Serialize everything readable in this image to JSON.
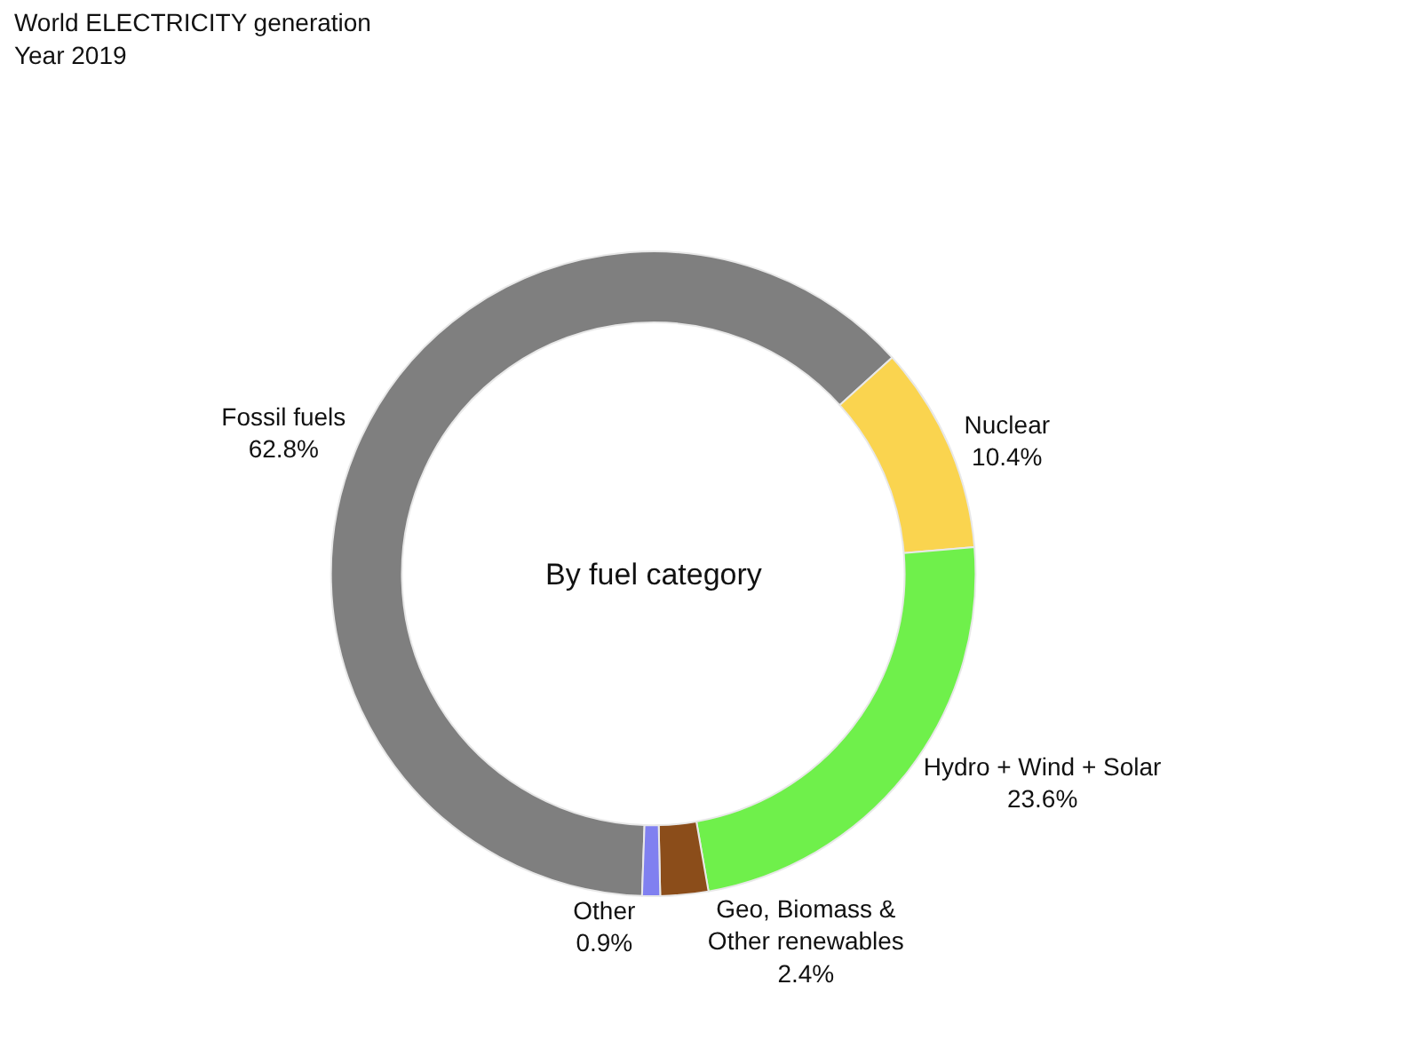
{
  "chart_data": {
    "type": "donut",
    "title": "World ELECTRICITY generation",
    "subtitle": "Year 2019",
    "annotations": [
      "By fuel category"
    ],
    "categories": [
      "Fossil fuels",
      "Nuclear",
      "Hydro + Wind + Solar",
      "Geo, Biomass &\nOther renewables",
      "Other"
    ],
    "values": [
      62.8,
      10.4,
      23.6,
      2.4,
      0.9
    ],
    "value_labels": [
      "62.8%",
      "10.4%",
      "23.6%",
      "2.4%",
      "0.9%"
    ],
    "colors": [
      "#7f7f7f",
      "#fad44f",
      "#6ff04b",
      "#8b4d1a",
      "#8080f0"
    ],
    "legend": false
  }
}
